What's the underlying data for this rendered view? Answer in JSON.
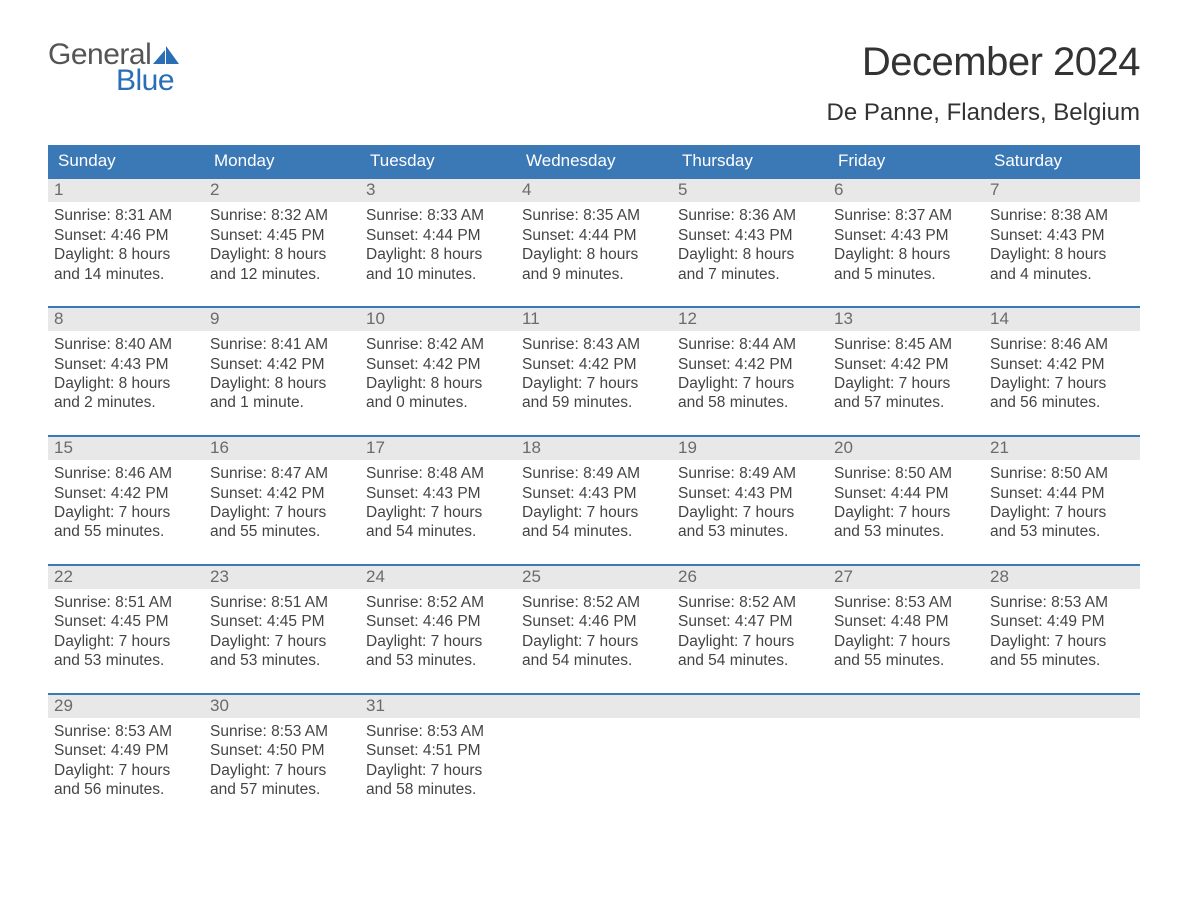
{
  "brand": {
    "line1": "General",
    "line2": "Blue",
    "accent_color": "#2a6eb5"
  },
  "title": "December 2024",
  "location": "De Panne, Flanders, Belgium",
  "colors": {
    "header_bg": "#3b78b6",
    "header_text": "#ffffff",
    "row_top_border": "#3b78b6",
    "daynum_bg": "#e8e8e8",
    "daynum_text": "#6b6b6b",
    "body_text": "#444444",
    "page_bg": "#ffffff"
  },
  "weekdays": [
    "Sunday",
    "Monday",
    "Tuesday",
    "Wednesday",
    "Thursday",
    "Friday",
    "Saturday"
  ],
  "weeks": [
    [
      {
        "day": "1",
        "sunrise": "Sunrise: 8:31 AM",
        "sunset": "Sunset: 4:46 PM",
        "daylight1": "Daylight: 8 hours",
        "daylight2": "and 14 minutes."
      },
      {
        "day": "2",
        "sunrise": "Sunrise: 8:32 AM",
        "sunset": "Sunset: 4:45 PM",
        "daylight1": "Daylight: 8 hours",
        "daylight2": "and 12 minutes."
      },
      {
        "day": "3",
        "sunrise": "Sunrise: 8:33 AM",
        "sunset": "Sunset: 4:44 PM",
        "daylight1": "Daylight: 8 hours",
        "daylight2": "and 10 minutes."
      },
      {
        "day": "4",
        "sunrise": "Sunrise: 8:35 AM",
        "sunset": "Sunset: 4:44 PM",
        "daylight1": "Daylight: 8 hours",
        "daylight2": "and 9 minutes."
      },
      {
        "day": "5",
        "sunrise": "Sunrise: 8:36 AM",
        "sunset": "Sunset: 4:43 PM",
        "daylight1": "Daylight: 8 hours",
        "daylight2": "and 7 minutes."
      },
      {
        "day": "6",
        "sunrise": "Sunrise: 8:37 AM",
        "sunset": "Sunset: 4:43 PM",
        "daylight1": "Daylight: 8 hours",
        "daylight2": "and 5 minutes."
      },
      {
        "day": "7",
        "sunrise": "Sunrise: 8:38 AM",
        "sunset": "Sunset: 4:43 PM",
        "daylight1": "Daylight: 8 hours",
        "daylight2": "and 4 minutes."
      }
    ],
    [
      {
        "day": "8",
        "sunrise": "Sunrise: 8:40 AM",
        "sunset": "Sunset: 4:43 PM",
        "daylight1": "Daylight: 8 hours",
        "daylight2": "and 2 minutes."
      },
      {
        "day": "9",
        "sunrise": "Sunrise: 8:41 AM",
        "sunset": "Sunset: 4:42 PM",
        "daylight1": "Daylight: 8 hours",
        "daylight2": "and 1 minute."
      },
      {
        "day": "10",
        "sunrise": "Sunrise: 8:42 AM",
        "sunset": "Sunset: 4:42 PM",
        "daylight1": "Daylight: 8 hours",
        "daylight2": "and 0 minutes."
      },
      {
        "day": "11",
        "sunrise": "Sunrise: 8:43 AM",
        "sunset": "Sunset: 4:42 PM",
        "daylight1": "Daylight: 7 hours",
        "daylight2": "and 59 minutes."
      },
      {
        "day": "12",
        "sunrise": "Sunrise: 8:44 AM",
        "sunset": "Sunset: 4:42 PM",
        "daylight1": "Daylight: 7 hours",
        "daylight2": "and 58 minutes."
      },
      {
        "day": "13",
        "sunrise": "Sunrise: 8:45 AM",
        "sunset": "Sunset: 4:42 PM",
        "daylight1": "Daylight: 7 hours",
        "daylight2": "and 57 minutes."
      },
      {
        "day": "14",
        "sunrise": "Sunrise: 8:46 AM",
        "sunset": "Sunset: 4:42 PM",
        "daylight1": "Daylight: 7 hours",
        "daylight2": "and 56 minutes."
      }
    ],
    [
      {
        "day": "15",
        "sunrise": "Sunrise: 8:46 AM",
        "sunset": "Sunset: 4:42 PM",
        "daylight1": "Daylight: 7 hours",
        "daylight2": "and 55 minutes."
      },
      {
        "day": "16",
        "sunrise": "Sunrise: 8:47 AM",
        "sunset": "Sunset: 4:42 PM",
        "daylight1": "Daylight: 7 hours",
        "daylight2": "and 55 minutes."
      },
      {
        "day": "17",
        "sunrise": "Sunrise: 8:48 AM",
        "sunset": "Sunset: 4:43 PM",
        "daylight1": "Daylight: 7 hours",
        "daylight2": "and 54 minutes."
      },
      {
        "day": "18",
        "sunrise": "Sunrise: 8:49 AM",
        "sunset": "Sunset: 4:43 PM",
        "daylight1": "Daylight: 7 hours",
        "daylight2": "and 54 minutes."
      },
      {
        "day": "19",
        "sunrise": "Sunrise: 8:49 AM",
        "sunset": "Sunset: 4:43 PM",
        "daylight1": "Daylight: 7 hours",
        "daylight2": "and 53 minutes."
      },
      {
        "day": "20",
        "sunrise": "Sunrise: 8:50 AM",
        "sunset": "Sunset: 4:44 PM",
        "daylight1": "Daylight: 7 hours",
        "daylight2": "and 53 minutes."
      },
      {
        "day": "21",
        "sunrise": "Sunrise: 8:50 AM",
        "sunset": "Sunset: 4:44 PM",
        "daylight1": "Daylight: 7 hours",
        "daylight2": "and 53 minutes."
      }
    ],
    [
      {
        "day": "22",
        "sunrise": "Sunrise: 8:51 AM",
        "sunset": "Sunset: 4:45 PM",
        "daylight1": "Daylight: 7 hours",
        "daylight2": "and 53 minutes."
      },
      {
        "day": "23",
        "sunrise": "Sunrise: 8:51 AM",
        "sunset": "Sunset: 4:45 PM",
        "daylight1": "Daylight: 7 hours",
        "daylight2": "and 53 minutes."
      },
      {
        "day": "24",
        "sunrise": "Sunrise: 8:52 AM",
        "sunset": "Sunset: 4:46 PM",
        "daylight1": "Daylight: 7 hours",
        "daylight2": "and 53 minutes."
      },
      {
        "day": "25",
        "sunrise": "Sunrise: 8:52 AM",
        "sunset": "Sunset: 4:46 PM",
        "daylight1": "Daylight: 7 hours",
        "daylight2": "and 54 minutes."
      },
      {
        "day": "26",
        "sunrise": "Sunrise: 8:52 AM",
        "sunset": "Sunset: 4:47 PM",
        "daylight1": "Daylight: 7 hours",
        "daylight2": "and 54 minutes."
      },
      {
        "day": "27",
        "sunrise": "Sunrise: 8:53 AM",
        "sunset": "Sunset: 4:48 PM",
        "daylight1": "Daylight: 7 hours",
        "daylight2": "and 55 minutes."
      },
      {
        "day": "28",
        "sunrise": "Sunrise: 8:53 AM",
        "sunset": "Sunset: 4:49 PM",
        "daylight1": "Daylight: 7 hours",
        "daylight2": "and 55 minutes."
      }
    ],
    [
      {
        "day": "29",
        "sunrise": "Sunrise: 8:53 AM",
        "sunset": "Sunset: 4:49 PM",
        "daylight1": "Daylight: 7 hours",
        "daylight2": "and 56 minutes."
      },
      {
        "day": "30",
        "sunrise": "Sunrise: 8:53 AM",
        "sunset": "Sunset: 4:50 PM",
        "daylight1": "Daylight: 7 hours",
        "daylight2": "and 57 minutes."
      },
      {
        "day": "31",
        "sunrise": "Sunrise: 8:53 AM",
        "sunset": "Sunset: 4:51 PM",
        "daylight1": "Daylight: 7 hours",
        "daylight2": "and 58 minutes."
      },
      {
        "empty": true
      },
      {
        "empty": true
      },
      {
        "empty": true
      },
      {
        "empty": true
      }
    ]
  ]
}
